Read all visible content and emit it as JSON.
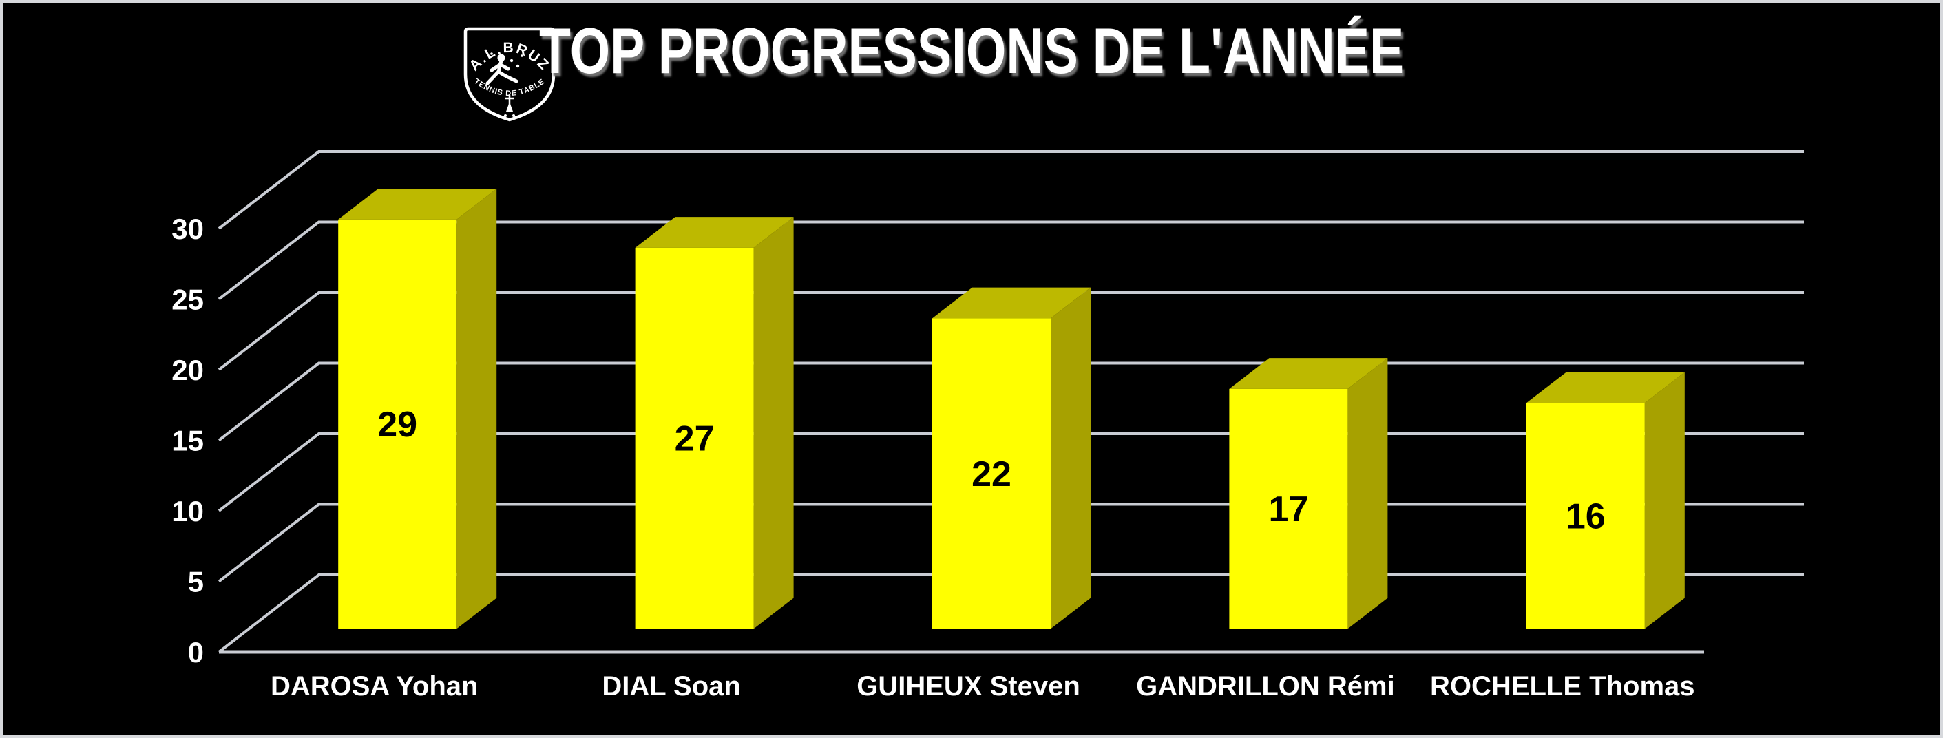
{
  "title": {
    "text": "TOP PROGRESSIONS DE L'ANNÉE"
  },
  "logo": {
    "club_name": "A.L.BRUZ",
    "sport": "TENNIS DE TABLE"
  },
  "chart_data": {
    "type": "bar",
    "projection": "3d",
    "title": "TOP PROGRESSIONS DE L'ANNÉE",
    "categories": [
      "DAROSA Yohan",
      "DIAL Soan",
      "GUIHEUX Steven",
      "GANDRILLON Rémi",
      "ROCHELLE Thomas"
    ],
    "values": [
      29,
      27,
      22,
      17,
      16
    ],
    "value_labels": [
      "29",
      "27",
      "22",
      "17",
      "16"
    ],
    "xlabel": "",
    "ylabel": "",
    "ylim": [
      0,
      30
    ],
    "yticks": [
      0,
      5,
      10,
      15,
      20,
      25,
      30
    ],
    "grid": true,
    "legend": false,
    "colors": {
      "background": "#000000",
      "bar_front": "#ffff00",
      "bar_top": "#bdb900",
      "bar_side": "#a7a100",
      "gridline": "#c9ccd3",
      "axis_line": "#c9ccd3",
      "tick_label": "#ffffff",
      "category_label": "#ffffff",
      "value_label": "#000000",
      "title": "#ffffff"
    }
  }
}
